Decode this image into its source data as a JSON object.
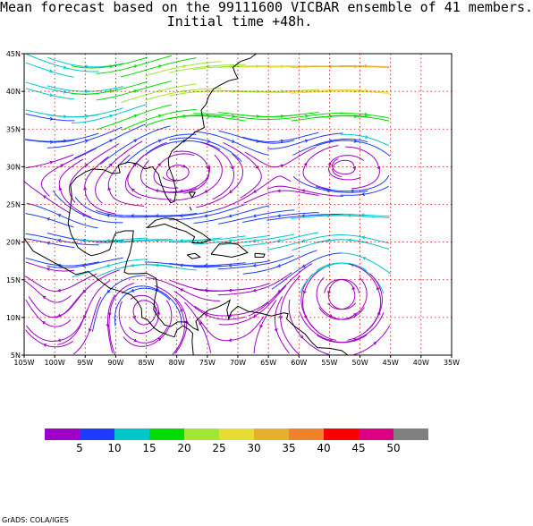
{
  "title_line1": "Mean forecast based on the 99111600 VICBAR ensemble of 41 members.",
  "title_line2": "Initial time +48h.",
  "credit": "GrADS: COLA/IGES",
  "map": {
    "lon_min": -105,
    "lon_max": -35,
    "lat_min": 5,
    "lat_max": 45,
    "lon_ticks": [
      -105,
      -100,
      -95,
      -90,
      -85,
      -80,
      -75,
      -70,
      -65,
      -60,
      -55,
      -50,
      -45,
      -40,
      -35
    ],
    "lon_labels": [
      "105W",
      "100W",
      "95W",
      "90W",
      "85W",
      "80W",
      "75W",
      "70W",
      "65W",
      "60W",
      "55W",
      "50W",
      "45W",
      "40W",
      "35W"
    ],
    "lat_ticks": [
      5,
      10,
      15,
      20,
      25,
      30,
      35,
      40,
      45
    ],
    "lat_labels": [
      "5N",
      "10N",
      "15N",
      "20N",
      "25N",
      "30N",
      "35N",
      "40N",
      "45N"
    ],
    "data_lon_max": -45,
    "grid_color": "#cc0000",
    "coast_color": "#000000"
  },
  "colorbar": {
    "colors": [
      "#a000c8",
      "#1e3cff",
      "#00c8c8",
      "#00dc00",
      "#a0e632",
      "#e6dc32",
      "#e6af2d",
      "#f08228",
      "#fa0000",
      "#dc0082",
      "#808080"
    ],
    "labels": [
      "5",
      "10",
      "15",
      "20",
      "25",
      "30",
      "35",
      "40",
      "45",
      "50"
    ]
  }
}
